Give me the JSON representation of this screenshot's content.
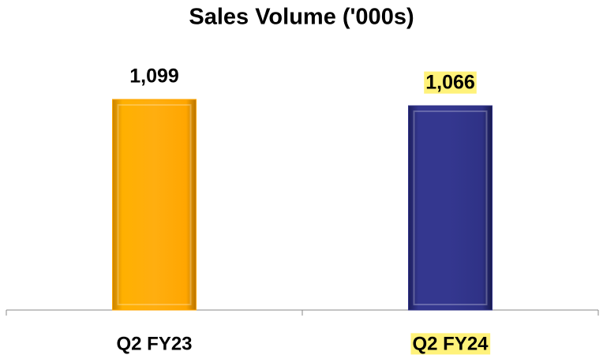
{
  "chart_data": {
    "type": "bar",
    "title": "Sales Volume ('000s)",
    "categories": [
      "Q2 FY23",
      "Q2 FY24"
    ],
    "values": [
      1099,
      1066
    ],
    "value_labels": [
      "1,099",
      "1,066"
    ],
    "colors": [
      "#ffa600",
      "#2f3286"
    ],
    "highlight": [
      false,
      true
    ],
    "highlight_color": "#fff27a",
    "ylim": [
      0,
      1200
    ]
  }
}
